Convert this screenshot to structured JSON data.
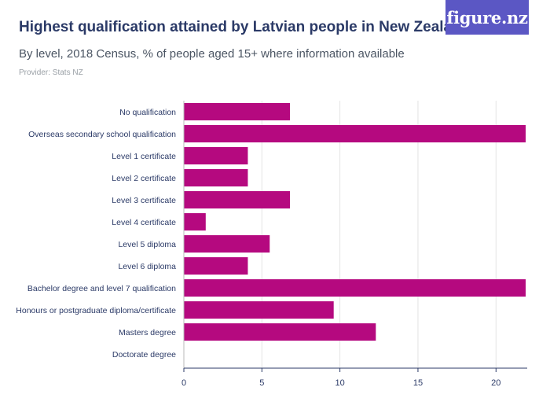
{
  "header": {
    "title": "Highest qualification attained by Latvian people in New Zealand",
    "subtitle": "By level, 2018 Census, % of people aged 15+ where information available",
    "provider": "Provider: Stats NZ",
    "brand_label": "figure.nz"
  },
  "colors": {
    "bar": "#b5097f",
    "grid": "#e4e4e4",
    "axis": "#2b3a67",
    "label": "#2b3a67"
  },
  "chart_data": {
    "type": "bar",
    "orientation": "horizontal",
    "title": "Highest qualification attained by Latvian people in New Zealand",
    "subtitle": "By level, 2018 Census, % of people aged 15+ where information available",
    "xlabel": "",
    "ylabel": "",
    "xlim": [
      0,
      22
    ],
    "xticks": [
      0,
      5,
      10,
      15,
      20
    ],
    "grid": true,
    "categories": [
      "No qualification",
      "Overseas secondary school qualification",
      "Level 1 certificate",
      "Level 2 certificate",
      "Level 3 certificate",
      "Level 4 certificate",
      "Level 5 diploma",
      "Level 6 diploma",
      "Bachelor degree and level 7 qualification",
      "Honours or postgraduate diploma/certificate",
      "Masters degree",
      "Doctorate degree"
    ],
    "values": [
      6.8,
      21.9,
      4.1,
      4.1,
      6.8,
      1.4,
      5.5,
      4.1,
      21.9,
      9.6,
      12.3,
      0
    ]
  }
}
